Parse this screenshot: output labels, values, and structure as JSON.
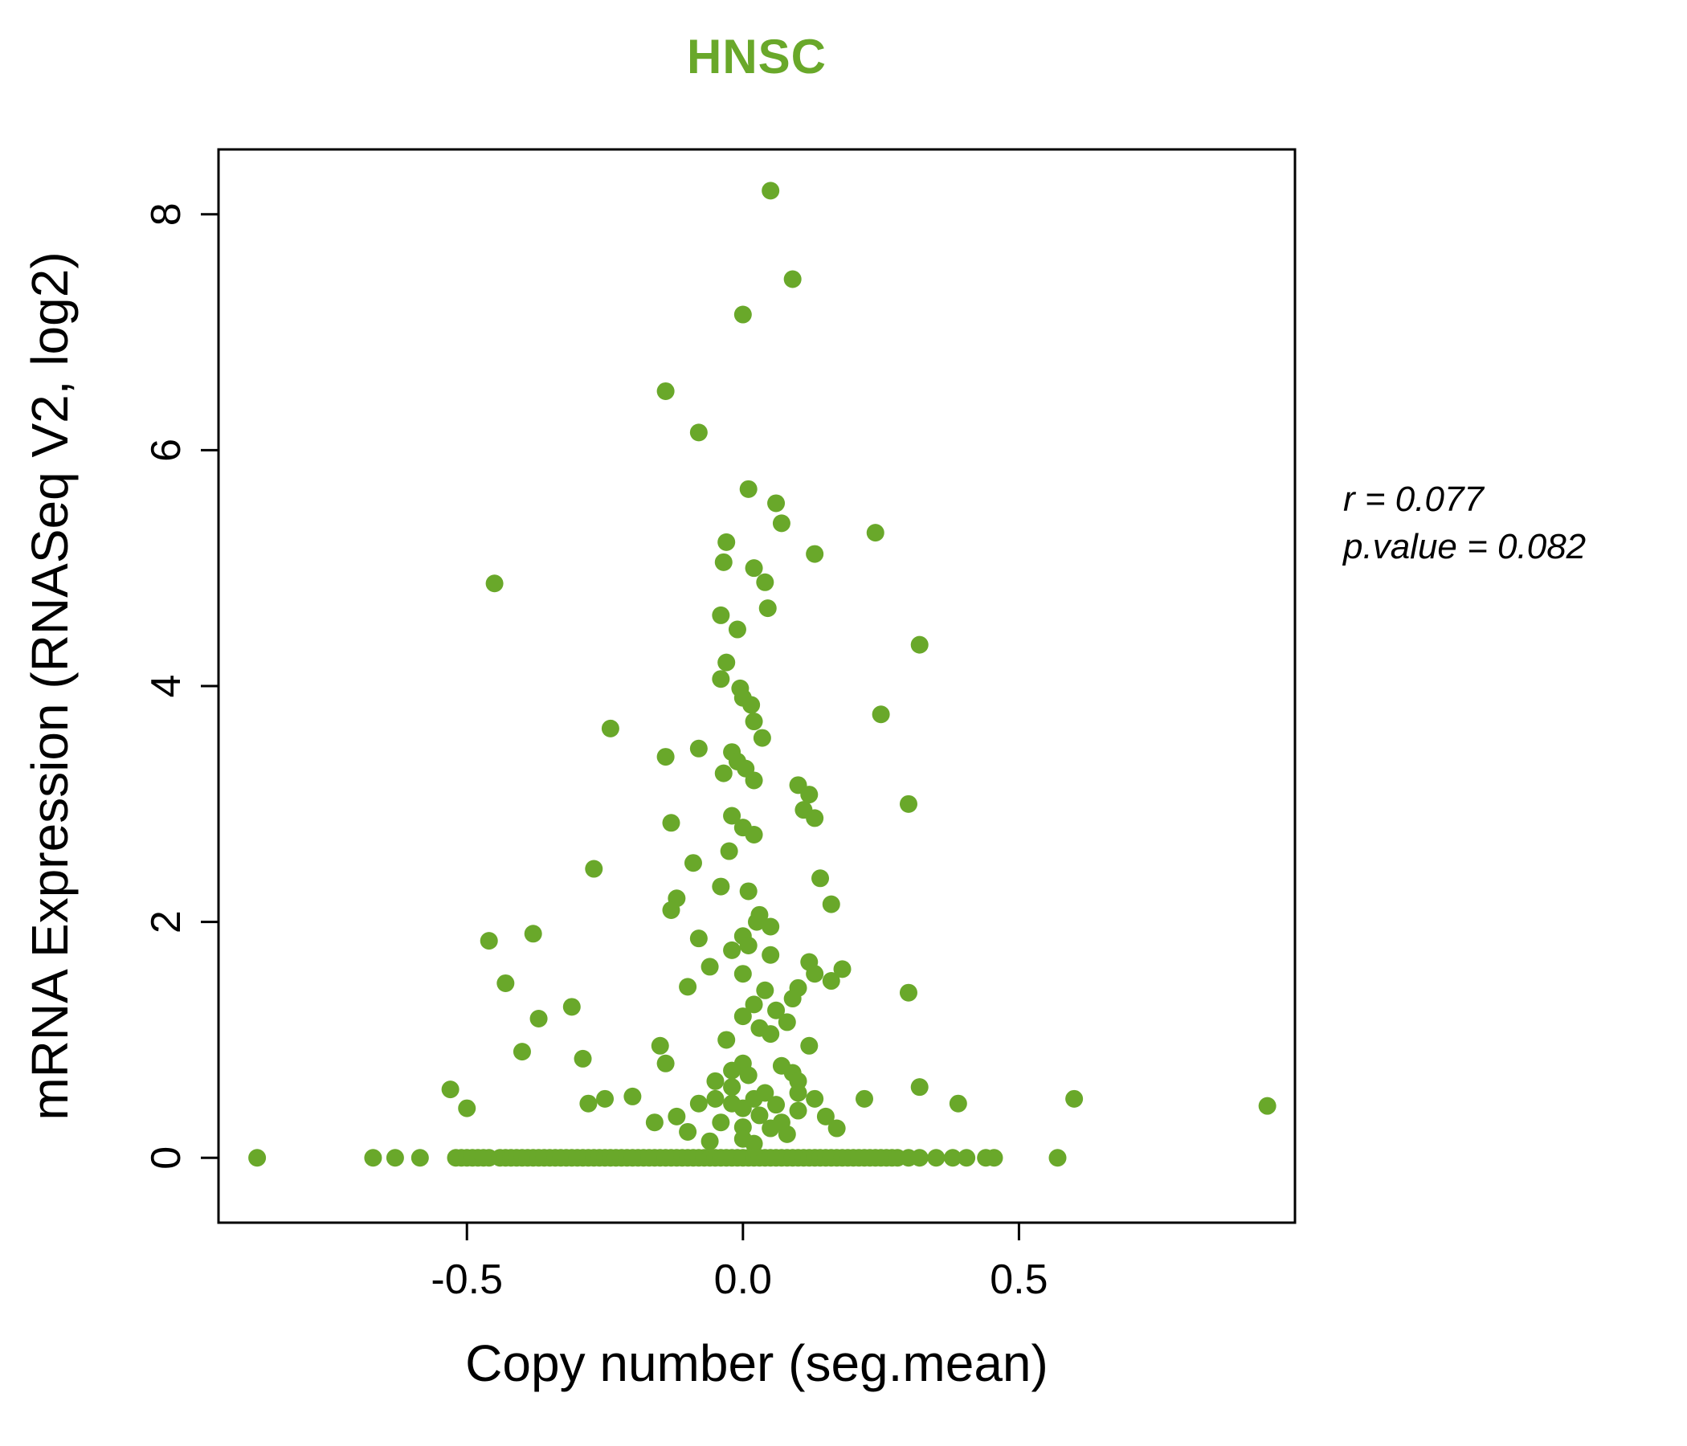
{
  "chart_data": {
    "type": "scatter",
    "title": "HNSC",
    "xlabel": "Copy number (seg.mean)",
    "ylabel": "mRNA Expression (RNASeq V2, log2)",
    "xlim": [
      -0.95,
      1.0
    ],
    "ylim": [
      -0.55,
      8.55
    ],
    "xtick_values": [
      -0.5,
      0.0,
      0.5
    ],
    "xtick_labels": [
      "-0.5",
      "0.0",
      "0.5"
    ],
    "ytick_values": [
      0,
      2,
      4,
      6,
      8
    ],
    "ytick_labels": [
      "0",
      "2",
      "4",
      "6",
      "8"
    ],
    "grid": false,
    "legend": "none",
    "point_color": "#69a82a",
    "title_color": "#69a82a",
    "annotation": {
      "line1": "r = 0.077",
      "line2": "p.value = 0.082"
    },
    "points": [
      [
        0.05,
        8.2
      ],
      [
        0.09,
        7.45
      ],
      [
        0.0,
        7.15
      ],
      [
        -0.14,
        6.5
      ],
      [
        -0.08,
        6.15
      ],
      [
        0.01,
        5.67
      ],
      [
        0.06,
        5.55
      ],
      [
        0.07,
        5.38
      ],
      [
        0.24,
        5.3
      ],
      [
        -0.03,
        5.22
      ],
      [
        0.13,
        5.12
      ],
      [
        -0.035,
        5.05
      ],
      [
        0.02,
        5.0
      ],
      [
        -0.45,
        4.87
      ],
      [
        0.04,
        4.88
      ],
      [
        0.045,
        4.66
      ],
      [
        -0.04,
        4.6
      ],
      [
        -0.01,
        4.48
      ],
      [
        0.32,
        4.35
      ],
      [
        -0.03,
        4.2
      ],
      [
        -0.04,
        4.06
      ],
      [
        -0.005,
        3.98
      ],
      [
        0.0,
        3.9
      ],
      [
        0.015,
        3.84
      ],
      [
        0.25,
        3.76
      ],
      [
        0.02,
        3.7
      ],
      [
        -0.24,
        3.64
      ],
      [
        0.035,
        3.56
      ],
      [
        -0.08,
        3.47
      ],
      [
        -0.02,
        3.44
      ],
      [
        -0.14,
        3.4
      ],
      [
        -0.01,
        3.36
      ],
      [
        0.005,
        3.3
      ],
      [
        -0.035,
        3.26
      ],
      [
        0.02,
        3.2
      ],
      [
        0.1,
        3.16
      ],
      [
        0.12,
        3.08
      ],
      [
        0.3,
        3.0
      ],
      [
        0.11,
        2.95
      ],
      [
        -0.02,
        2.9
      ],
      [
        0.13,
        2.88
      ],
      [
        -0.13,
        2.84
      ],
      [
        0.0,
        2.8
      ],
      [
        0.02,
        2.74
      ],
      [
        -0.025,
        2.6
      ],
      [
        -0.09,
        2.5
      ],
      [
        -0.27,
        2.45
      ],
      [
        0.14,
        2.37
      ],
      [
        -0.04,
        2.3
      ],
      [
        0.01,
        2.26
      ],
      [
        -0.12,
        2.2
      ],
      [
        0.16,
        2.15
      ],
      [
        -0.13,
        2.1
      ],
      [
        0.03,
        2.06
      ],
      [
        0.025,
        2.0
      ],
      [
        0.05,
        1.96
      ],
      [
        -0.38,
        1.9
      ],
      [
        -0.46,
        1.84
      ],
      [
        -0.08,
        1.86
      ],
      [
        0.0,
        1.88
      ],
      [
        0.01,
        1.8
      ],
      [
        -0.02,
        1.76
      ],
      [
        0.05,
        1.72
      ],
      [
        0.12,
        1.66
      ],
      [
        -0.06,
        1.62
      ],
      [
        0.0,
        1.56
      ],
      [
        0.13,
        1.56
      ],
      [
        0.18,
        1.6
      ],
      [
        0.16,
        1.5
      ],
      [
        -0.43,
        1.48
      ],
      [
        -0.1,
        1.45
      ],
      [
        0.04,
        1.42
      ],
      [
        0.1,
        1.44
      ],
      [
        0.3,
        1.4
      ],
      [
        0.09,
        1.35
      ],
      [
        0.02,
        1.3
      ],
      [
        -0.31,
        1.28
      ],
      [
        0.06,
        1.25
      ],
      [
        0.0,
        1.2
      ],
      [
        -0.37,
        1.18
      ],
      [
        0.08,
        1.15
      ],
      [
        0.03,
        1.1
      ],
      [
        0.05,
        1.05
      ],
      [
        -0.03,
        1.0
      ],
      [
        -0.15,
        0.95
      ],
      [
        0.12,
        0.95
      ],
      [
        -0.4,
        0.9
      ],
      [
        -0.29,
        0.84
      ],
      [
        -0.14,
        0.8
      ],
      [
        0.0,
        0.8
      ],
      [
        0.07,
        0.78
      ],
      [
        -0.02,
        0.74
      ],
      [
        0.09,
        0.72
      ],
      [
        0.1,
        0.65
      ],
      [
        0.32,
        0.6
      ],
      [
        -0.53,
        0.58
      ],
      [
        0.1,
        0.55
      ],
      [
        0.22,
        0.5
      ],
      [
        0.6,
        0.5
      ],
      [
        0.95,
        0.44
      ],
      [
        0.39,
        0.46
      ],
      [
        -0.5,
        0.42
      ],
      [
        -0.28,
        0.46
      ],
      [
        -0.25,
        0.5
      ],
      [
        -0.2,
        0.52
      ],
      [
        -0.08,
        0.46
      ],
      [
        -0.05,
        0.5
      ],
      [
        -0.02,
        0.46
      ],
      [
        0.0,
        0.42
      ],
      [
        0.02,
        0.5
      ],
      [
        0.03,
        0.36
      ],
      [
        -0.04,
        0.3
      ],
      [
        0.0,
        0.26
      ],
      [
        0.05,
        0.25
      ],
      [
        -0.1,
        0.22
      ],
      [
        -0.16,
        0.3
      ],
      [
        0.0,
        0.16
      ],
      [
        0.02,
        0.12
      ],
      [
        -0.06,
        0.14
      ],
      [
        0.07,
        0.3
      ],
      [
        0.1,
        0.4
      ],
      [
        0.13,
        0.5
      ],
      [
        0.04,
        0.55
      ],
      [
        -0.02,
        0.6
      ],
      [
        -0.05,
        0.65
      ],
      [
        0.01,
        0.7
      ],
      [
        0.06,
        0.45
      ],
      [
        0.08,
        0.2
      ],
      [
        -0.12,
        0.35
      ],
      [
        0.15,
        0.35
      ],
      [
        0.17,
        0.25
      ],
      [
        -0.88,
        0
      ],
      [
        -0.67,
        0
      ],
      [
        -0.63,
        0
      ],
      [
        -0.585,
        0
      ],
      [
        -0.52,
        0
      ],
      [
        -0.51,
        0
      ],
      [
        -0.5,
        0
      ],
      [
        -0.49,
        0
      ],
      [
        -0.48,
        0
      ],
      [
        -0.47,
        0
      ],
      [
        -0.46,
        0
      ],
      [
        -0.44,
        0
      ],
      [
        -0.43,
        0
      ],
      [
        -0.42,
        0
      ],
      [
        -0.41,
        0
      ],
      [
        -0.4,
        0
      ],
      [
        -0.39,
        0
      ],
      [
        -0.38,
        0
      ],
      [
        -0.37,
        0
      ],
      [
        -0.36,
        0
      ],
      [
        -0.35,
        0
      ],
      [
        -0.34,
        0
      ],
      [
        -0.33,
        0
      ],
      [
        -0.32,
        0
      ],
      [
        -0.31,
        0
      ],
      [
        -0.3,
        0
      ],
      [
        -0.29,
        0
      ],
      [
        -0.28,
        0
      ],
      [
        -0.27,
        0
      ],
      [
        -0.26,
        0
      ],
      [
        -0.25,
        0
      ],
      [
        -0.24,
        0
      ],
      [
        -0.23,
        0
      ],
      [
        -0.22,
        0
      ],
      [
        -0.21,
        0
      ],
      [
        -0.2,
        0
      ],
      [
        -0.19,
        0
      ],
      [
        -0.18,
        0
      ],
      [
        -0.17,
        0
      ],
      [
        -0.16,
        0
      ],
      [
        -0.15,
        0
      ],
      [
        -0.14,
        0
      ],
      [
        -0.13,
        0
      ],
      [
        -0.12,
        0
      ],
      [
        -0.11,
        0
      ],
      [
        -0.1,
        0
      ],
      [
        -0.09,
        0
      ],
      [
        -0.08,
        0
      ],
      [
        -0.07,
        0
      ],
      [
        -0.06,
        0
      ],
      [
        -0.05,
        0
      ],
      [
        -0.04,
        0
      ],
      [
        -0.03,
        0
      ],
      [
        -0.02,
        0
      ],
      [
        -0.01,
        0
      ],
      [
        0.0,
        0
      ],
      [
        0.01,
        0
      ],
      [
        0.02,
        0
      ],
      [
        0.03,
        0
      ],
      [
        0.04,
        0
      ],
      [
        0.05,
        0
      ],
      [
        0.06,
        0
      ],
      [
        0.07,
        0
      ],
      [
        0.08,
        0
      ],
      [
        0.09,
        0
      ],
      [
        0.1,
        0
      ],
      [
        0.11,
        0
      ],
      [
        0.12,
        0
      ],
      [
        0.13,
        0
      ],
      [
        0.14,
        0
      ],
      [
        0.15,
        0
      ],
      [
        0.16,
        0
      ],
      [
        0.17,
        0
      ],
      [
        0.18,
        0
      ],
      [
        0.19,
        0
      ],
      [
        0.2,
        0
      ],
      [
        0.21,
        0
      ],
      [
        0.22,
        0
      ],
      [
        0.23,
        0
      ],
      [
        0.24,
        0
      ],
      [
        0.25,
        0
      ],
      [
        0.26,
        0
      ],
      [
        0.27,
        0
      ],
      [
        0.28,
        0
      ],
      [
        0.3,
        0
      ],
      [
        0.32,
        0
      ],
      [
        0.35,
        0
      ],
      [
        0.38,
        0
      ],
      [
        0.405,
        0
      ],
      [
        0.44,
        0
      ],
      [
        0.455,
        0
      ],
      [
        0.57,
        0
      ]
    ]
  }
}
